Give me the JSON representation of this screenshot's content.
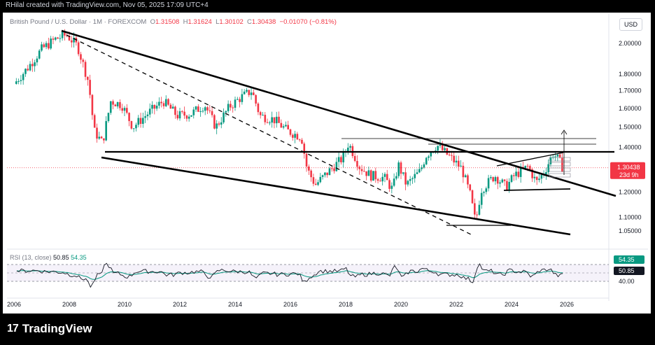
{
  "header": {
    "creator": "RHilal created with TradingView.com, Nov 05, 2025 17:09 UTC+4"
  },
  "legend": {
    "symbol": "British Pound / U.S. Dollar · 1M · FOREXCOM",
    "open_label": "O",
    "open": "1.31508",
    "high_label": "H",
    "high": "1.31624",
    "low_label": "L",
    "low": "1.30102",
    "close_label": "C",
    "close": "1.30438",
    "change": "−0.01070 (−0.81%)"
  },
  "currency": "USD",
  "price_badge": {
    "value": "1.30438",
    "countdown": "23d 9h",
    "color": "#f23645"
  },
  "rsi": {
    "label": "RSI (13, close)",
    "rsi_value": "50.85",
    "ma_value": "54.35",
    "upper": "70.00",
    "lower": "40.00",
    "rsi_color": "#131722",
    "ma_color": "#089981"
  },
  "brand": {
    "logo": "17",
    "name": "TradingView"
  },
  "chart_data": {
    "type": "candlestick",
    "price_axis_ticks": [
      "2.00000",
      "1.80000",
      "1.70000",
      "1.60000",
      "1.50000",
      "1.40000",
      "1.30000",
      "1.20000",
      "1.10000",
      "1.05000"
    ],
    "time_axis_ticks": [
      "2006",
      "2008",
      "2010",
      "2012",
      "2014",
      "2016",
      "2018",
      "2020",
      "2022",
      "2024",
      "2026"
    ],
    "ylim": [
      1.0,
      2.1
    ],
    "xlim": [
      2005.8,
      2027.3
    ],
    "log_scale": true,
    "series": [
      {
        "name": "GBPUSD monthly (approx. closes)",
        "points": [
          [
            2006.0,
            1.74
          ],
          [
            2006.5,
            1.84
          ],
          [
            2007.0,
            1.96
          ],
          [
            2007.5,
            2.03
          ],
          [
            2007.9,
            2.06
          ],
          [
            2008.3,
            1.98
          ],
          [
            2008.7,
            1.75
          ],
          [
            2008.9,
            1.48
          ],
          [
            2009.2,
            1.42
          ],
          [
            2009.5,
            1.64
          ],
          [
            2009.9,
            1.62
          ],
          [
            2010.3,
            1.5
          ],
          [
            2010.9,
            1.58
          ],
          [
            2011.4,
            1.64
          ],
          [
            2011.9,
            1.56
          ],
          [
            2012.4,
            1.57
          ],
          [
            2012.9,
            1.62
          ],
          [
            2013.3,
            1.5
          ],
          [
            2013.8,
            1.61
          ],
          [
            2014.2,
            1.66
          ],
          [
            2014.6,
            1.7
          ],
          [
            2014.9,
            1.56
          ],
          [
            2015.4,
            1.54
          ],
          [
            2015.9,
            1.48
          ],
          [
            2016.4,
            1.45
          ],
          [
            2016.6,
            1.3
          ],
          [
            2016.9,
            1.23
          ],
          [
            2017.4,
            1.29
          ],
          [
            2017.9,
            1.35
          ],
          [
            2018.1,
            1.42
          ],
          [
            2018.5,
            1.31
          ],
          [
            2018.9,
            1.27
          ],
          [
            2019.4,
            1.26
          ],
          [
            2019.7,
            1.21
          ],
          [
            2019.9,
            1.32
          ],
          [
            2020.2,
            1.23
          ],
          [
            2020.7,
            1.29
          ],
          [
            2020.9,
            1.36
          ],
          [
            2021.3,
            1.41
          ],
          [
            2021.8,
            1.35
          ],
          [
            2022.2,
            1.3
          ],
          [
            2022.5,
            1.19
          ],
          [
            2022.7,
            1.08
          ],
          [
            2022.9,
            1.21
          ],
          [
            2023.4,
            1.27
          ],
          [
            2023.8,
            1.22
          ],
          [
            2024.1,
            1.27
          ],
          [
            2024.6,
            1.31
          ],
          [
            2024.9,
            1.24
          ],
          [
            2025.2,
            1.29
          ],
          [
            2025.5,
            1.37
          ],
          [
            2025.7,
            1.34
          ],
          [
            2025.85,
            1.30438
          ]
        ]
      }
    ],
    "overlays": [
      "descending channel upper trendline",
      "descending channel lower trendline",
      "dashed trendline",
      "horizontal resistance 1.38",
      "horizontal levels 1.36–1.45",
      "rising wedge 2023–2025"
    ],
    "grid": false
  }
}
